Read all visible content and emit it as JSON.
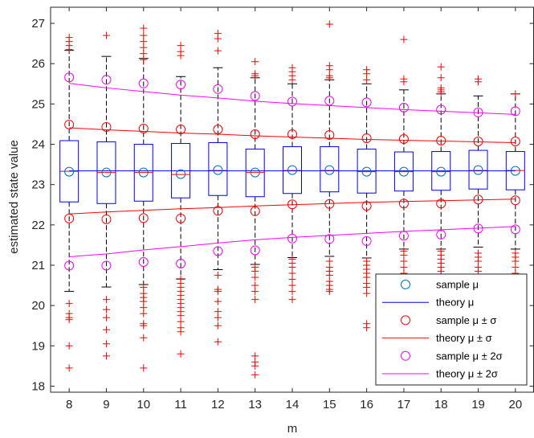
{
  "chart_data": {
    "type": "box",
    "xlabel": "m",
    "ylabel": "estimated state value",
    "xlim": [
      7.5,
      20.5
    ],
    "ylim": [
      17.85,
      27.4
    ],
    "x_ticks": [
      8,
      9,
      10,
      11,
      12,
      13,
      14,
      15,
      16,
      17,
      18,
      19,
      20
    ],
    "y_ticks": [
      18,
      19,
      20,
      21,
      22,
      23,
      24,
      25,
      26,
      27
    ],
    "grid": false,
    "legend_position": "bottom-right",
    "colors": {
      "box": "#0000ff",
      "whisker": "#000000",
      "outlier": "#ff0000",
      "sample_mu": "#0072bd",
      "theory_mu": "#0000ff",
      "sigma1": "#ff0000",
      "sigma2": "#ff00ff"
    },
    "boxes": [
      {
        "m": 8,
        "q1": 22.57,
        "median": 23.33,
        "q3": 24.09,
        "wlo": 20.35,
        "whi": 26.33
      },
      {
        "m": 9,
        "q1": 22.53,
        "median": 23.3,
        "q3": 24.06,
        "wlo": 20.46,
        "whi": 26.18
      },
      {
        "m": 10,
        "q1": 22.59,
        "median": 23.3,
        "q3": 24.0,
        "wlo": 20.52,
        "whi": 26.13
      },
      {
        "m": 11,
        "q1": 22.67,
        "median": 23.25,
        "q3": 24.02,
        "wlo": 20.66,
        "whi": 25.68
      },
      {
        "m": 12,
        "q1": 22.73,
        "median": 23.35,
        "q3": 24.04,
        "wlo": 20.89,
        "whi": 25.9
      },
      {
        "m": 13,
        "q1": 22.7,
        "median": 23.3,
        "q3": 23.88,
        "wlo": 21.02,
        "whi": 25.65
      },
      {
        "m": 14,
        "q1": 22.78,
        "median": 23.35,
        "q3": 23.94,
        "wlo": 21.19,
        "whi": 25.5
      },
      {
        "m": 15,
        "q1": 22.82,
        "median": 23.35,
        "q3": 23.94,
        "wlo": 21.22,
        "whi": 25.6
      },
      {
        "m": 16,
        "q1": 22.79,
        "median": 23.32,
        "q3": 23.88,
        "wlo": 21.18,
        "whi": 25.5
      },
      {
        "m": 17,
        "q1": 22.84,
        "median": 23.32,
        "q3": 23.81,
        "wlo": 21.4,
        "whi": 25.35
      },
      {
        "m": 18,
        "q1": 22.86,
        "median": 23.32,
        "q3": 23.82,
        "wlo": 21.4,
        "whi": 25.25
      },
      {
        "m": 19,
        "q1": 22.89,
        "median": 23.35,
        "q3": 23.85,
        "wlo": 21.45,
        "whi": 25.2
      },
      {
        "m": 20,
        "q1": 22.87,
        "median": 23.35,
        "q3": 23.82,
        "wlo": 21.4,
        "whi": 25.25
      }
    ],
    "outliers": [
      {
        "m": 8,
        "values": [
          26.65,
          26.55,
          26.45,
          26.35,
          20.05,
          19.8,
          19.7,
          19.65,
          19.0,
          18.45
        ]
      },
      {
        "m": 9,
        "values": [
          26.7,
          20.15,
          19.9,
          19.7,
          19.4,
          19.05,
          18.75
        ]
      },
      {
        "m": 10,
        "values": [
          26.88,
          26.7,
          26.55,
          26.4,
          26.25,
          26.1,
          20.45,
          20.3,
          20.2,
          20.1,
          19.95,
          19.8,
          19.55,
          19.5,
          19.2,
          18.45
        ]
      },
      {
        "m": 11,
        "values": [
          26.45,
          26.3,
          26.2,
          20.65,
          20.55,
          20.45,
          20.35,
          20.25,
          20.15,
          20.05,
          19.95,
          19.85,
          19.75,
          19.6,
          19.45,
          19.35,
          18.8
        ]
      },
      {
        "m": 12,
        "values": [
          26.75,
          26.62,
          26.32,
          20.75,
          20.4,
          20.35,
          20.1,
          19.85,
          19.7,
          19.5,
          19.1
        ]
      },
      {
        "m": 13,
        "values": [
          26.05,
          25.75,
          25.7,
          20.95,
          20.85,
          20.7,
          20.5,
          20.35,
          20.15,
          18.75,
          18.6,
          18.5,
          18.28
        ]
      },
      {
        "m": 14,
        "values": [
          25.9,
          25.8,
          25.7,
          25.6,
          21.15,
          21.05,
          20.95,
          20.8,
          20.65,
          20.5,
          20.35,
          20.15
        ]
      },
      {
        "m": 15,
        "values": [
          26.98,
          25.95,
          25.85,
          25.7,
          25.65,
          21.1,
          20.95,
          20.85,
          20.75,
          20.6,
          20.5,
          20.4,
          20.35
        ]
      },
      {
        "m": 16,
        "values": [
          25.85,
          25.75,
          25.6,
          21.1,
          21.0,
          20.9,
          20.8,
          20.7,
          20.55,
          20.45,
          20.3,
          19.55,
          19.45
        ]
      },
      {
        "m": 17,
        "values": [
          26.6,
          25.62,
          25.55,
          21.35,
          21.25,
          21.1,
          20.95,
          20.8,
          20.55
        ]
      },
      {
        "m": 18,
        "values": [
          25.92,
          25.65,
          25.4,
          25.35,
          25.3,
          21.35,
          21.25,
          21.15,
          21.05,
          20.95,
          20.85,
          20.75,
          20.6,
          20.15
        ]
      },
      {
        "m": 19,
        "values": [
          25.62,
          25.55,
          21.3,
          21.2,
          21.1,
          20.95,
          20.85,
          20.6
        ]
      },
      {
        "m": 20,
        "values": [
          25.25,
          21.3,
          21.2,
          21.1,
          20.95,
          20.8
        ]
      }
    ],
    "series": [
      {
        "name": "sample μ",
        "type": "marker",
        "x": [
          8,
          9,
          10,
          11,
          12,
          13,
          14,
          15,
          16,
          17,
          18,
          19,
          20
        ],
        "y": [
          23.32,
          23.3,
          23.3,
          23.26,
          23.36,
          23.3,
          23.36,
          23.36,
          23.32,
          23.32,
          23.32,
          23.36,
          23.34
        ]
      },
      {
        "name": "theory μ",
        "type": "line",
        "x": [
          8,
          9,
          10,
          11,
          12,
          13,
          14,
          15,
          16,
          17,
          18,
          19,
          20
        ],
        "y": [
          23.34,
          23.34,
          23.34,
          23.34,
          23.34,
          23.34,
          23.34,
          23.34,
          23.34,
          23.34,
          23.34,
          23.34,
          23.34
        ]
      },
      {
        "name": "sample μ ± σ",
        "type": "marker",
        "x": [
          8,
          9,
          10,
          11,
          12,
          13,
          14,
          15,
          16,
          17,
          18,
          19,
          20
        ],
        "y_upper": [
          24.49,
          24.43,
          24.39,
          24.37,
          24.37,
          24.25,
          24.25,
          24.23,
          24.15,
          24.13,
          24.09,
          24.07,
          24.07
        ],
        "y_lower": [
          22.16,
          22.14,
          22.17,
          22.16,
          22.35,
          22.34,
          22.51,
          22.52,
          22.47,
          22.53,
          22.53,
          22.63,
          22.61
        ]
      },
      {
        "name": "theory μ ± σ",
        "type": "line",
        "x": [
          8,
          9,
          10,
          11,
          12,
          13,
          14,
          15,
          16,
          17,
          18,
          19,
          20
        ],
        "y_upper": [
          24.41,
          24.36,
          24.32,
          24.28,
          24.25,
          24.21,
          24.18,
          24.15,
          24.12,
          24.1,
          24.08,
          24.06,
          24.04
        ],
        "y_lower": [
          22.27,
          22.32,
          22.36,
          22.4,
          22.43,
          22.47,
          22.5,
          22.53,
          22.56,
          22.58,
          22.6,
          22.62,
          22.64
        ]
      },
      {
        "name": "sample μ ± 2σ",
        "type": "marker",
        "x": [
          8,
          9,
          10,
          11,
          12,
          13,
          14,
          15,
          16,
          17,
          18,
          19,
          20
        ],
        "y_upper": [
          25.66,
          25.6,
          25.51,
          25.48,
          25.37,
          25.2,
          25.06,
          25.08,
          25.04,
          24.91,
          24.86,
          24.79,
          24.82
        ],
        "y_lower": [
          20.99,
          20.99,
          21.08,
          21.04,
          21.35,
          21.37,
          21.66,
          21.65,
          21.6,
          21.73,
          21.76,
          21.91,
          21.89
        ]
      },
      {
        "name": "theory μ ± 2σ",
        "type": "line",
        "x": [
          8,
          9,
          10,
          11,
          12,
          13,
          14,
          15,
          16,
          17,
          18,
          19,
          20
        ],
        "y_upper": [
          25.51,
          25.4,
          25.31,
          25.22,
          25.15,
          25.07,
          25.01,
          24.96,
          24.91,
          24.86,
          24.82,
          24.78,
          24.74
        ],
        "y_lower": [
          21.21,
          21.28,
          21.38,
          21.46,
          21.55,
          21.63,
          21.69,
          21.74,
          21.79,
          21.84,
          21.88,
          21.92,
          21.96
        ]
      }
    ]
  }
}
